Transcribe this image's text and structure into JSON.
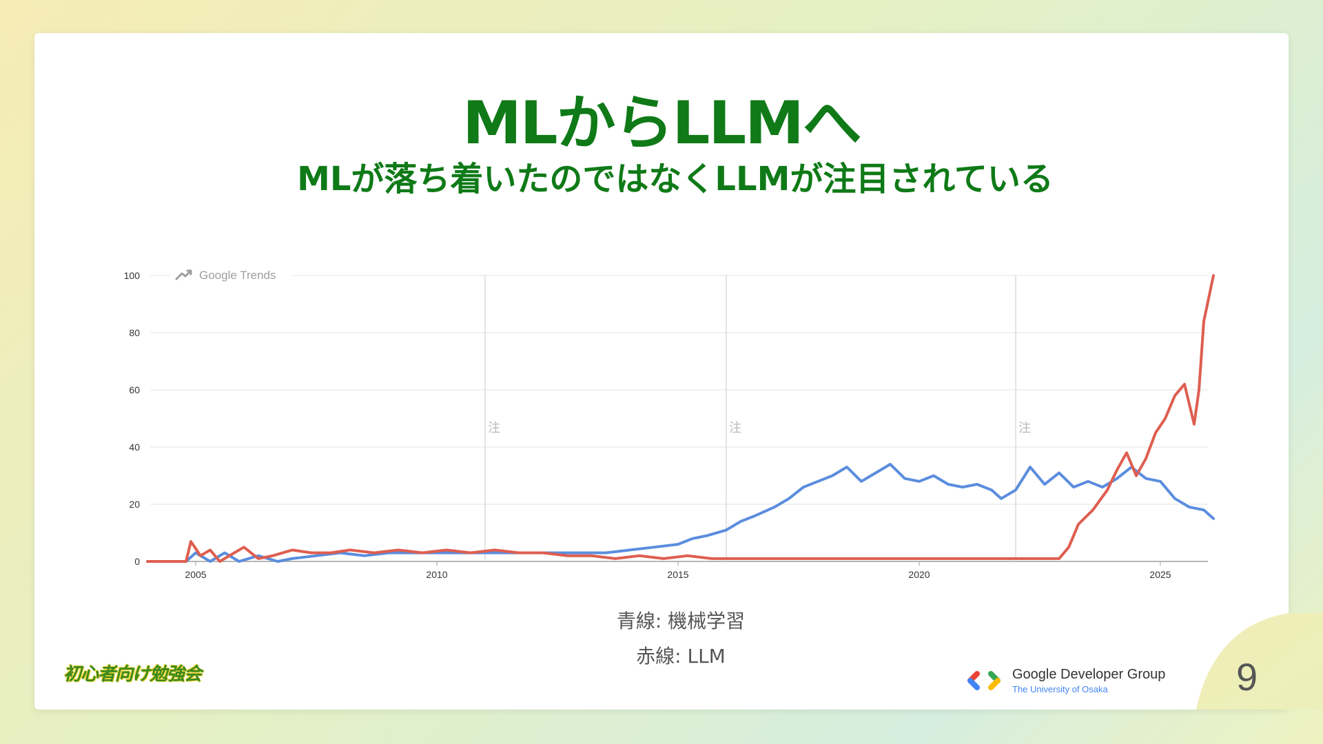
{
  "slide": {
    "title": "MLからLLMへ",
    "subtitle": "MLが落ち着いたのではなくLLMが注目されている",
    "page_number": "9",
    "study_group_logo_text": "初心者向け勉強会",
    "org_name": "Google Developer Group",
    "org_sub": "The University of Osaka"
  },
  "legend_captions": [
    "青線: 機械学習",
    "赤線: LLM"
  ],
  "chart_data": {
    "type": "line",
    "watermark": "Google Trends",
    "note_marker": "注",
    "note_years": [
      2011,
      2016,
      2022
    ],
    "xlim": [
      2004,
      2026.1
    ],
    "ylim": [
      0,
      100
    ],
    "x_ticks": [
      2005,
      2010,
      2015,
      2020,
      2025
    ],
    "y_ticks": [
      0,
      20,
      40,
      60,
      80,
      100
    ],
    "grid": true,
    "series": [
      {
        "name": "機械学習",
        "color": "#5b8dde",
        "x": [
          2004,
          2004.8,
          2005,
          2005.3,
          2005.6,
          2005.9,
          2006.3,
          2006.7,
          2007,
          2007.5,
          2008,
          2008.5,
          2009,
          2009.5,
          2010,
          2010.5,
          2011,
          2011.5,
          2012,
          2012.5,
          2013,
          2013.5,
          2014,
          2014.5,
          2015,
          2015.3,
          2015.6,
          2016,
          2016.3,
          2016.6,
          2017,
          2017.3,
          2017.6,
          2017.9,
          2018.2,
          2018.5,
          2018.8,
          2019.1,
          2019.4,
          2019.7,
          2020,
          2020.3,
          2020.6,
          2020.9,
          2021.2,
          2021.5,
          2021.7,
          2022,
          2022.3,
          2022.6,
          2022.9,
          2023.2,
          2023.5,
          2023.8,
          2024.1,
          2024.4,
          2024.7,
          2025,
          2025.3,
          2025.6,
          2025.9,
          2026.1
        ],
        "y": [
          0,
          0,
          3,
          0,
          3,
          0,
          2,
          0,
          1,
          2,
          3,
          2,
          3,
          3,
          3,
          3,
          3,
          3,
          3,
          3,
          3,
          3,
          4,
          5,
          6,
          8,
          9,
          11,
          14,
          16,
          19,
          22,
          26,
          28,
          30,
          33,
          28,
          31,
          34,
          29,
          28,
          30,
          27,
          26,
          27,
          25,
          22,
          25,
          33,
          27,
          31,
          26,
          28,
          26,
          29,
          33,
          29,
          28,
          22,
          19,
          18,
          15
        ]
      },
      {
        "name": "LLM",
        "color": "#de5e50",
        "x": [
          2004,
          2004.8,
          2004.9,
          2005.1,
          2005.3,
          2005.5,
          2005.8,
          2006,
          2006.3,
          2006.6,
          2007,
          2007.4,
          2007.8,
          2008.2,
          2008.7,
          2009.2,
          2009.7,
          2010.2,
          2010.7,
          2011.2,
          2011.7,
          2012.2,
          2012.7,
          2013.2,
          2013.7,
          2014.2,
          2014.7,
          2015.2,
          2015.7,
          2016.2,
          2016.7,
          2017.2,
          2017.7,
          2018.2,
          2018.7,
          2019.2,
          2019.7,
          2020.2,
          2020.7,
          2021.2,
          2021.7,
          2022.2,
          2022.6,
          2022.9,
          2023.1,
          2023.3,
          2023.6,
          2023.9,
          2024.1,
          2024.3,
          2024.5,
          2024.7,
          2024.9,
          2025.1,
          2025.3,
          2025.5,
          2025.7,
          2025.8,
          2025.9,
          2026,
          2026.1
        ],
        "y": [
          0,
          0,
          7,
          2,
          4,
          0,
          3,
          5,
          1,
          2,
          4,
          3,
          3,
          4,
          3,
          4,
          3,
          4,
          3,
          4,
          3,
          3,
          2,
          2,
          1,
          2,
          1,
          2,
          1,
          1,
          1,
          1,
          1,
          1,
          1,
          1,
          1,
          1,
          1,
          1,
          1,
          1,
          1,
          1,
          5,
          13,
          18,
          25,
          32,
          38,
          30,
          36,
          45,
          50,
          58,
          62,
          48,
          60,
          84,
          92,
          100
        ]
      }
    ]
  }
}
